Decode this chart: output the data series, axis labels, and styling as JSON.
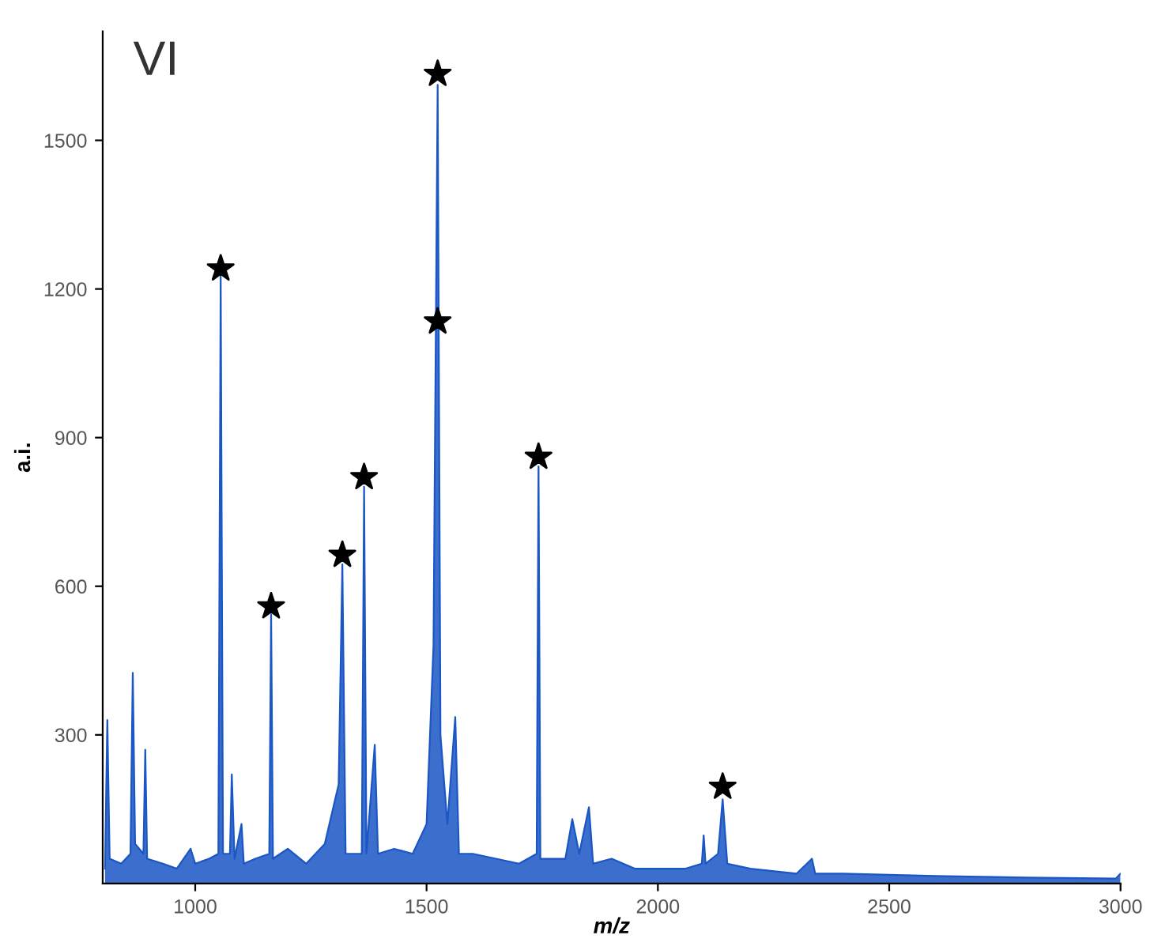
{
  "chart_data": {
    "type": "area",
    "annotations": [
      "VI"
    ],
    "xlabel": "m/z",
    "ylabel": "a.i.",
    "xlim": [
      800,
      3000
    ],
    "ylim": [
      0,
      1720
    ],
    "xticks": [
      1000,
      1500,
      2000,
      2500,
      3000
    ],
    "yticks": [
      300,
      600,
      900,
      1200,
      1500
    ],
    "grid": false,
    "series": [
      {
        "color": "#1a56c4",
        "x": [
          805,
          810,
          815,
          840,
          860,
          865,
          870,
          888,
          892,
          896,
          930,
          960,
          990,
          1000,
          1030,
          1050,
          1055,
          1060,
          1075,
          1079,
          1085,
          1100,
          1105,
          1130,
          1160,
          1164,
          1168,
          1200,
          1240,
          1280,
          1310,
          1318,
          1325,
          1360,
          1365,
          1370,
          1388,
          1395,
          1430,
          1470,
          1500,
          1515,
          1524,
          1530,
          1545,
          1562,
          1570,
          1600,
          1650,
          1700,
          1738,
          1742,
          1746,
          1800,
          1815,
          1830,
          1851,
          1860,
          1900,
          1950,
          2000,
          2060,
          2095,
          2099,
          2103,
          2130,
          2140,
          2150,
          2200,
          2300,
          2333,
          2340,
          2400,
          2600,
          2800,
          2990,
          3000
        ],
        "values": [
          30,
          330,
          50,
          40,
          60,
          425,
          80,
          60,
          270,
          50,
          40,
          30,
          70,
          40,
          50,
          60,
          1225,
          60,
          60,
          220,
          50,
          120,
          40,
          50,
          60,
          543,
          50,
          70,
          40,
          80,
          200,
          644,
          60,
          60,
          801,
          60,
          280,
          60,
          70,
          60,
          120,
          480,
          1612,
          300,
          120,
          336,
          60,
          60,
          50,
          40,
          60,
          842,
          50,
          50,
          130,
          60,
          154,
          40,
          50,
          30,
          30,
          30,
          40,
          97,
          40,
          60,
          170,
          40,
          30,
          20,
          50,
          20,
          20,
          15,
          12,
          10,
          20
        ]
      },
      {
        "type": "scatter",
        "marker": "star",
        "color": "#000000",
        "x": [
          1055,
          1164,
          1318,
          1365,
          1524,
          1524,
          1742,
          2140
        ],
        "values": [
          1241,
          559,
          663,
          820,
          1634,
          1134,
          861,
          195
        ]
      }
    ]
  }
}
